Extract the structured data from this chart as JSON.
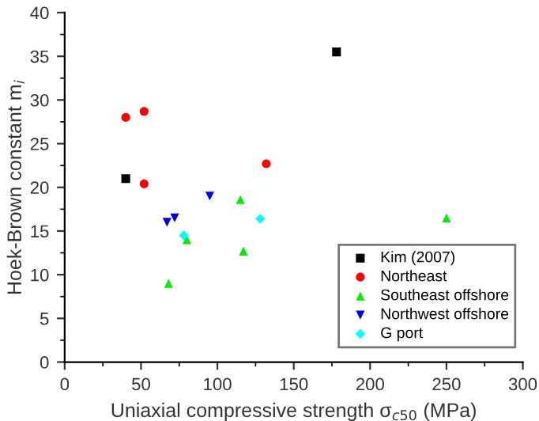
{
  "chart_data": {
    "type": "scatter",
    "xlabel": "Uniaxial compressive strength σ$_{c50}$ (MPa)",
    "ylabel": "Hoek-Brown constant m$_{i}$",
    "xlim": [
      0,
      300
    ],
    "xticks": [
      0,
      50,
      100,
      150,
      200,
      250,
      300
    ],
    "ylim": [
      0,
      40
    ],
    "yticks": [
      0,
      5,
      10,
      15,
      20,
      25,
      30,
      35,
      40
    ],
    "grid": false,
    "legend": "bottom right",
    "series": [
      {
        "name": "Kim (2007)",
        "color": "#000000",
        "marker": "square",
        "x": [
          40,
          178
        ],
        "values": [
          21,
          35.5
        ]
      },
      {
        "name": "Northeast",
        "color": "#ff0000",
        "marker": "circle",
        "x": [
          40,
          52,
          52,
          132
        ],
        "values": [
          28,
          28.7,
          20.4,
          22.7
        ]
      },
      {
        "name": "Southeast offshore",
        "color": "#00ee00",
        "marker": "triangle",
        "x": [
          68,
          80,
          115,
          117,
          250
        ],
        "values": [
          9,
          14,
          18.6,
          12.7,
          16.5
        ]
      },
      {
        "name": "Northwest offshore",
        "color": "#0000dd",
        "marker": "triangle_down",
        "x": [
          67,
          72,
          95
        ],
        "values": [
          16,
          16.5,
          19
        ]
      },
      {
        "name": "G port",
        "color": "#00ffff",
        "marker": "diamond",
        "x": [
          78,
          128
        ],
        "values": [
          14.5,
          16.4
        ]
      }
    ]
  }
}
